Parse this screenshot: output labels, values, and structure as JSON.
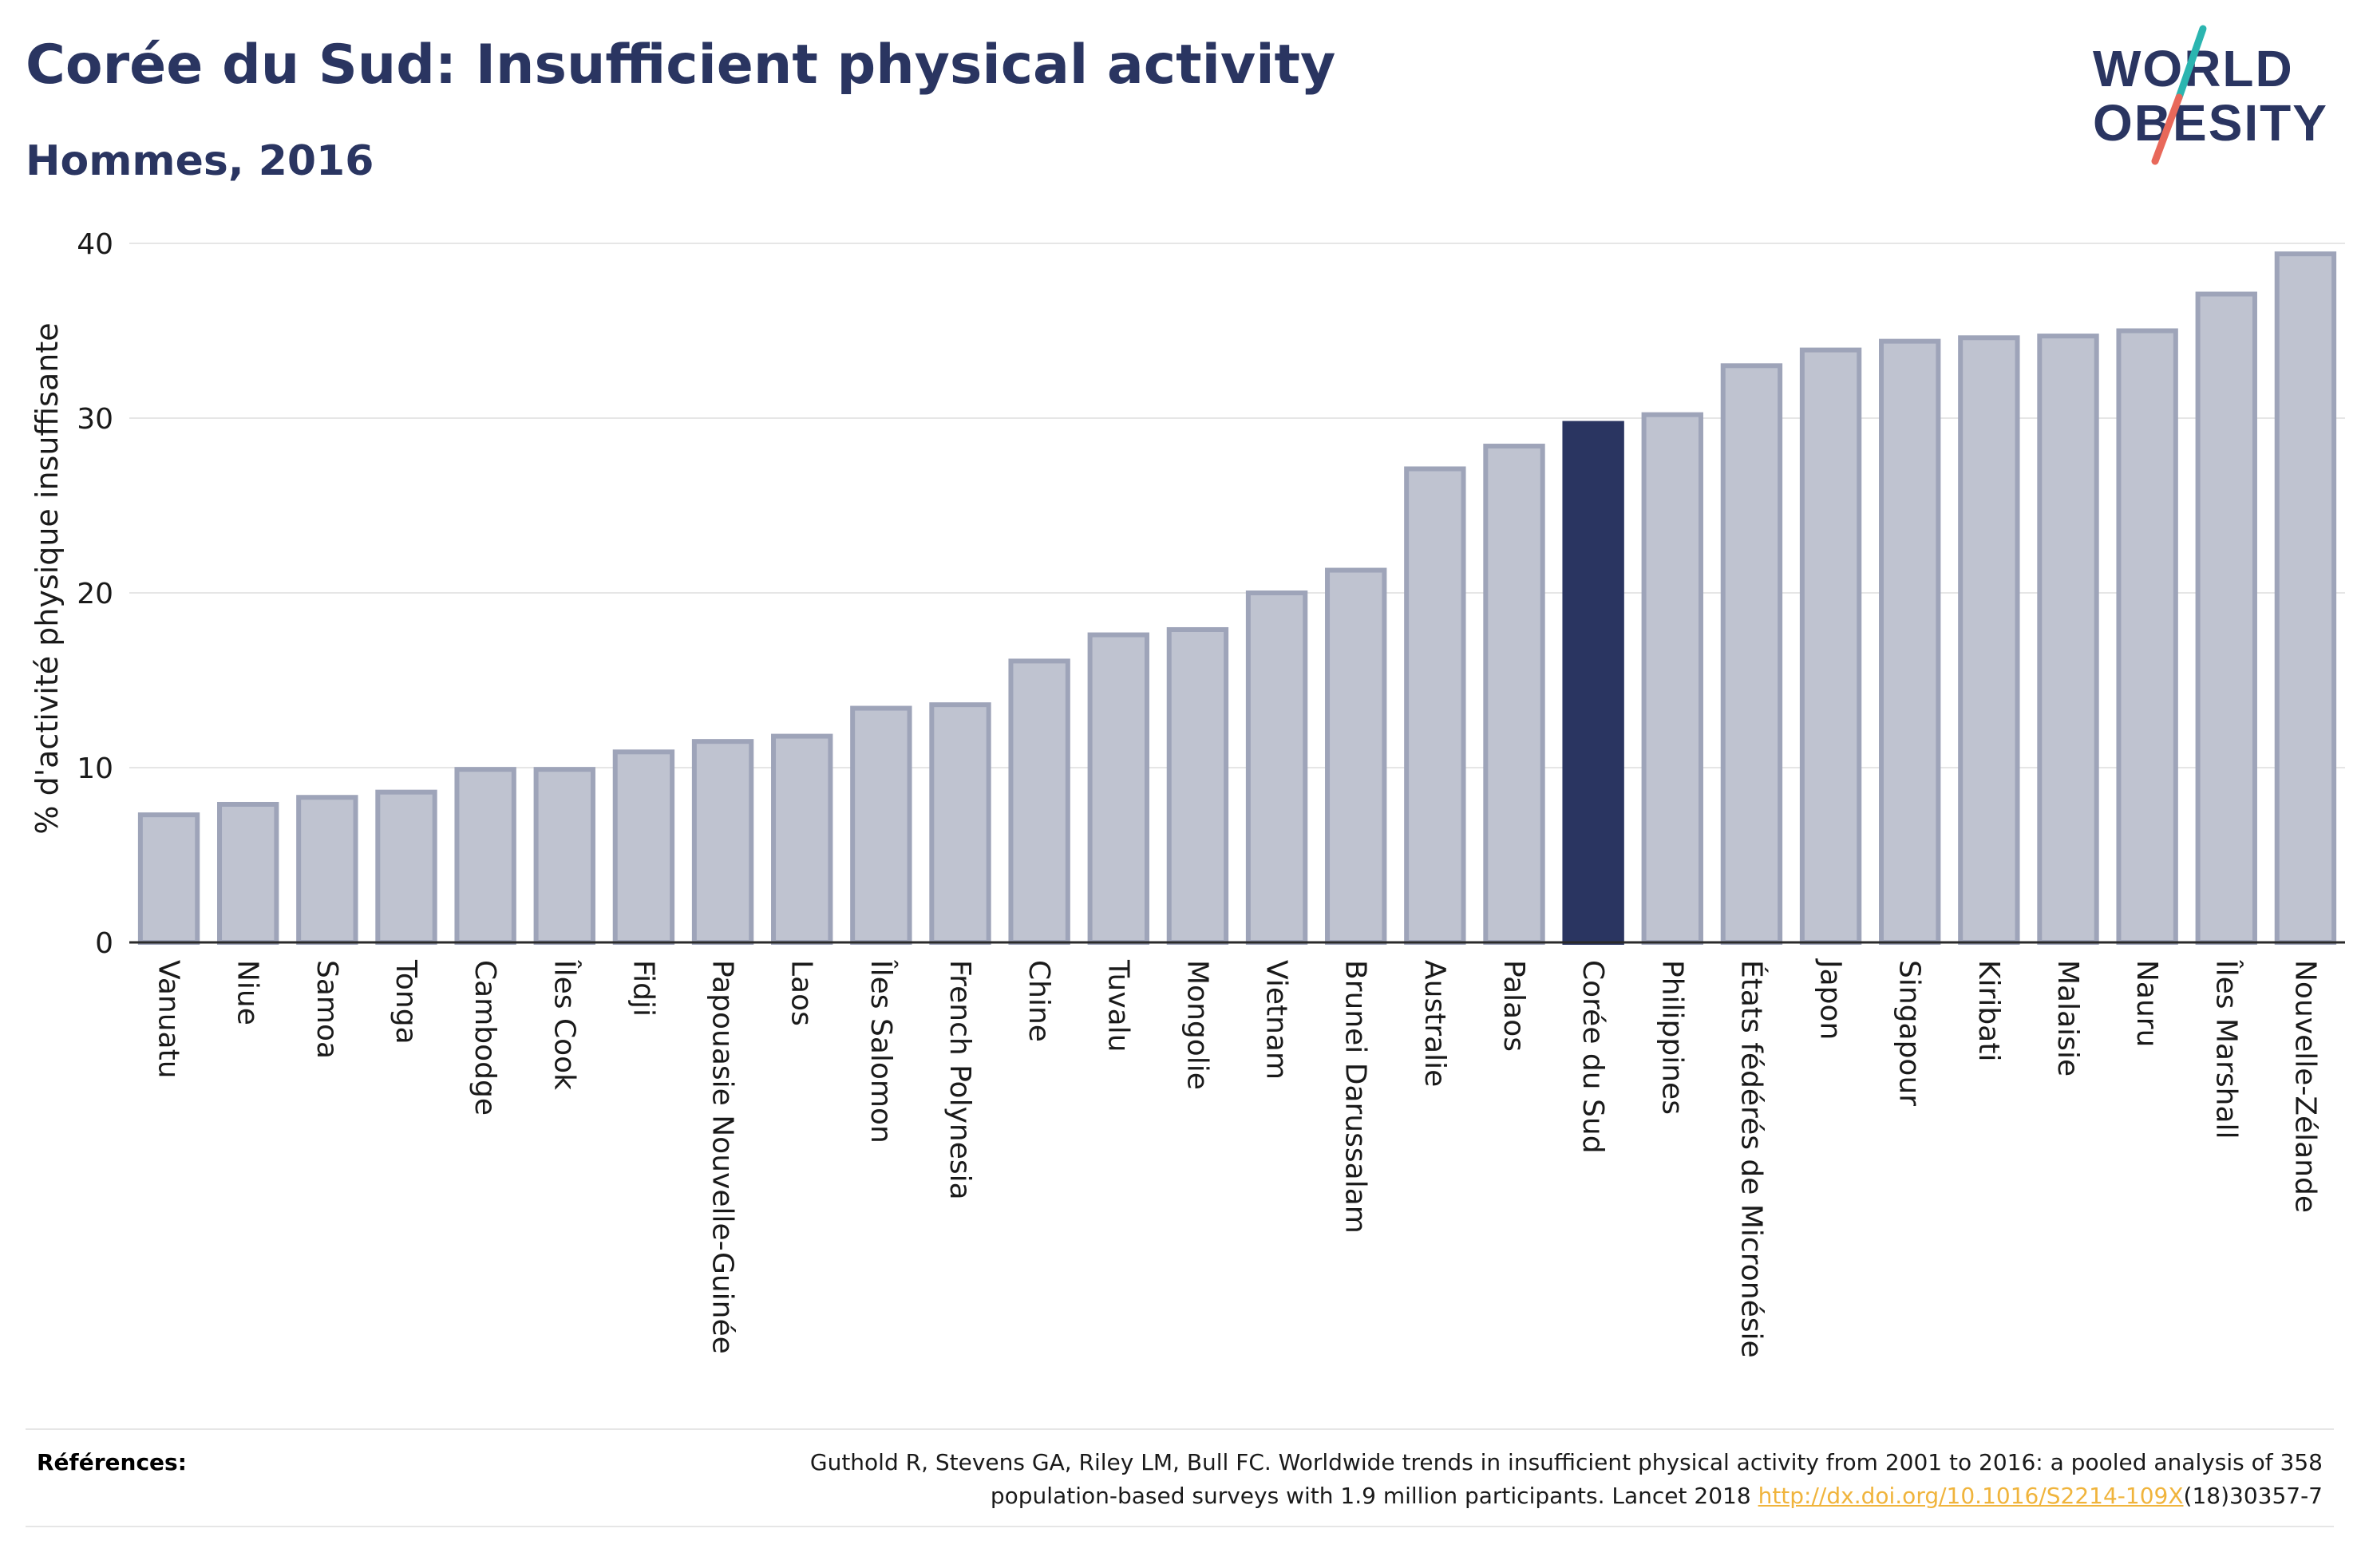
{
  "header": {
    "title": "Corée du Sud: Insufficient physical activity",
    "subtitle": "Hommes, 2016"
  },
  "logo": {
    "line1": "WORLD",
    "line2": "OBESITY",
    "colors": {
      "text": "#2a3561",
      "slash_top": "#2bb5b0",
      "slash_bottom": "#e8685a"
    }
  },
  "chart_data": {
    "type": "bar",
    "title": "Corée du Sud: Insufficient physical activity",
    "subtitle": "Hommes, 2016",
    "ylabel": "% d'activité physique insuffisante",
    "xlabel": "",
    "ylim": [
      0,
      40
    ],
    "yticks": [
      0,
      10,
      20,
      30,
      40
    ],
    "grid": true,
    "highlight": "Corée du Sud",
    "colors": {
      "bar": "#bfc3d0",
      "bar_border": "#9ea4b9",
      "highlight": "#2a3561"
    },
    "categories": [
      "Vanuatu",
      "Niue",
      "Samoa",
      "Tonga",
      "Cambodge",
      "Îles Cook",
      "Fidji",
      "Papouasie Nouvelle-Guinée",
      "Laos",
      "Îles Salomon",
      "French Polynesia",
      "Chine",
      "Tuvalu",
      "Mongolie",
      "Vietnam",
      "Brunei Darussalam",
      "Australie",
      "Palaos",
      "Corée du Sud",
      "Philippines",
      "États fédérés de Micronésie",
      "Japon",
      "Singapour",
      "Kiribati",
      "Malaisie",
      "Nauru",
      "Îles Marshall",
      "Nouvelle-Zélande"
    ],
    "values": [
      7.3,
      7.9,
      8.3,
      8.6,
      9.9,
      9.9,
      10.9,
      11.5,
      11.8,
      13.4,
      13.6,
      16.1,
      17.6,
      17.9,
      20.0,
      21.3,
      27.1,
      28.4,
      29.7,
      30.2,
      33.0,
      33.9,
      34.4,
      34.6,
      34.7,
      35.0,
      37.1,
      39.4
    ]
  },
  "references": {
    "label": "Références:",
    "text_line1": "Guthold R, Stevens GA, Riley LM, Bull FC. Worldwide trends in insufficient physical activity from 2001 to 2016: a pooled analysis of 358",
    "text_line2_prefix": "population-based surveys with 1.9 million participants. Lancet 2018 ",
    "link_text": "http://dx.doi.org/10.1016/S2214-109X",
    "text_suffix": "(18)30357-7"
  }
}
